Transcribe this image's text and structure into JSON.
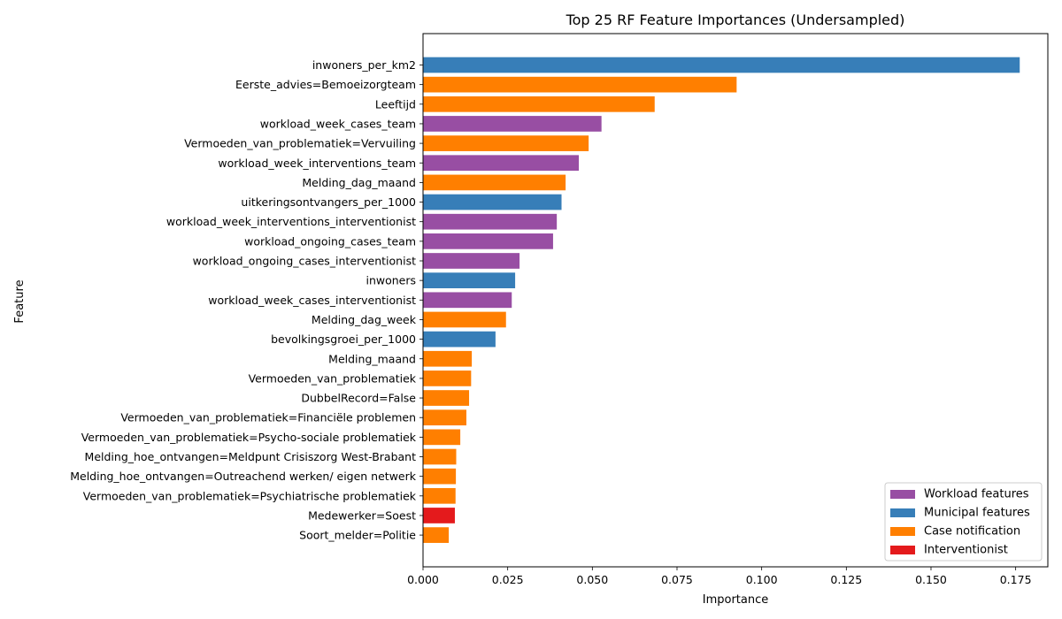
{
  "chart_data": {
    "type": "bar",
    "orientation": "horizontal",
    "title": "Top 25 RF Feature Importances (Undersampled)",
    "xlabel": "Importance",
    "ylabel": "Feature",
    "xlim": [
      0,
      0.1845
    ],
    "xticks": [
      0.0,
      0.025,
      0.05,
      0.075,
      0.1,
      0.125,
      0.15,
      0.175
    ],
    "xtick_labels": [
      "0.000",
      "0.025",
      "0.050",
      "0.075",
      "0.100",
      "0.125",
      "0.150",
      "0.175"
    ],
    "grid": false,
    "legend_position": "bottom-right",
    "legend": [
      {
        "label": "Workload features",
        "color": "#984ea3"
      },
      {
        "label": "Municipal features",
        "color": "#377eb8"
      },
      {
        "label": "Case notification",
        "color": "#ff7f00"
      },
      {
        "label": "Interventionist",
        "color": "#e41a1c"
      }
    ],
    "bars": [
      {
        "feature": "inwoners_per_km2",
        "value": 0.1762,
        "group": "Municipal features"
      },
      {
        "feature": "Eerste_advies=Bemoeizorgteam",
        "value": 0.0926,
        "group": "Case notification"
      },
      {
        "feature": "Leeftijd",
        "value": 0.0684,
        "group": "Case notification"
      },
      {
        "feature": "workload_week_cases_team",
        "value": 0.0527,
        "group": "Workload features"
      },
      {
        "feature": "Vermoeden_van_problematiek=Vervuiling",
        "value": 0.0489,
        "group": "Case notification"
      },
      {
        "feature": "workload_week_interventions_team",
        "value": 0.046,
        "group": "Workload features"
      },
      {
        "feature": "Melding_dag_maand",
        "value": 0.0421,
        "group": "Case notification"
      },
      {
        "feature": "uitkeringsontvangers_per_1000",
        "value": 0.0409,
        "group": "Municipal features"
      },
      {
        "feature": "workload_week_interventions_interventionist",
        "value": 0.0395,
        "group": "Workload features"
      },
      {
        "feature": "workload_ongoing_cases_team",
        "value": 0.0384,
        "group": "Workload features"
      },
      {
        "feature": "workload_ongoing_cases_interventionist",
        "value": 0.0285,
        "group": "Workload features"
      },
      {
        "feature": "inwoners",
        "value": 0.0272,
        "group": "Municipal features"
      },
      {
        "feature": "workload_week_cases_interventionist",
        "value": 0.0262,
        "group": "Workload features"
      },
      {
        "feature": "Melding_dag_week",
        "value": 0.0245,
        "group": "Case notification"
      },
      {
        "feature": "bevolkingsgroei_per_1000",
        "value": 0.0214,
        "group": "Municipal features"
      },
      {
        "feature": "Melding_maand",
        "value": 0.0144,
        "group": "Case notification"
      },
      {
        "feature": "Vermoeden_van_problematiek",
        "value": 0.0142,
        "group": "Case notification"
      },
      {
        "feature": "DubbelRecord=False",
        "value": 0.0136,
        "group": "Case notification"
      },
      {
        "feature": "Vermoeden_van_problematiek=Financiële problemen",
        "value": 0.0128,
        "group": "Case notification"
      },
      {
        "feature": "Vermoeden_van_problematiek=Psycho-sociale problematiek",
        "value": 0.011,
        "group": "Case notification"
      },
      {
        "feature": "Melding_hoe_ontvangen=Meldpunt Crisiszorg West-Brabant",
        "value": 0.0098,
        "group": "Case notification"
      },
      {
        "feature": "Melding_hoe_ontvangen=Outreachend werken/ eigen netwerk",
        "value": 0.0097,
        "group": "Case notification"
      },
      {
        "feature": "Vermoeden_van_problematiek=Psychiatrische problematiek",
        "value": 0.0096,
        "group": "Case notification"
      },
      {
        "feature": "Medewerker=Soest",
        "value": 0.0094,
        "group": "Interventionist"
      },
      {
        "feature": "Soort_melder=Politie",
        "value": 0.0076,
        "group": "Case notification"
      }
    ]
  }
}
